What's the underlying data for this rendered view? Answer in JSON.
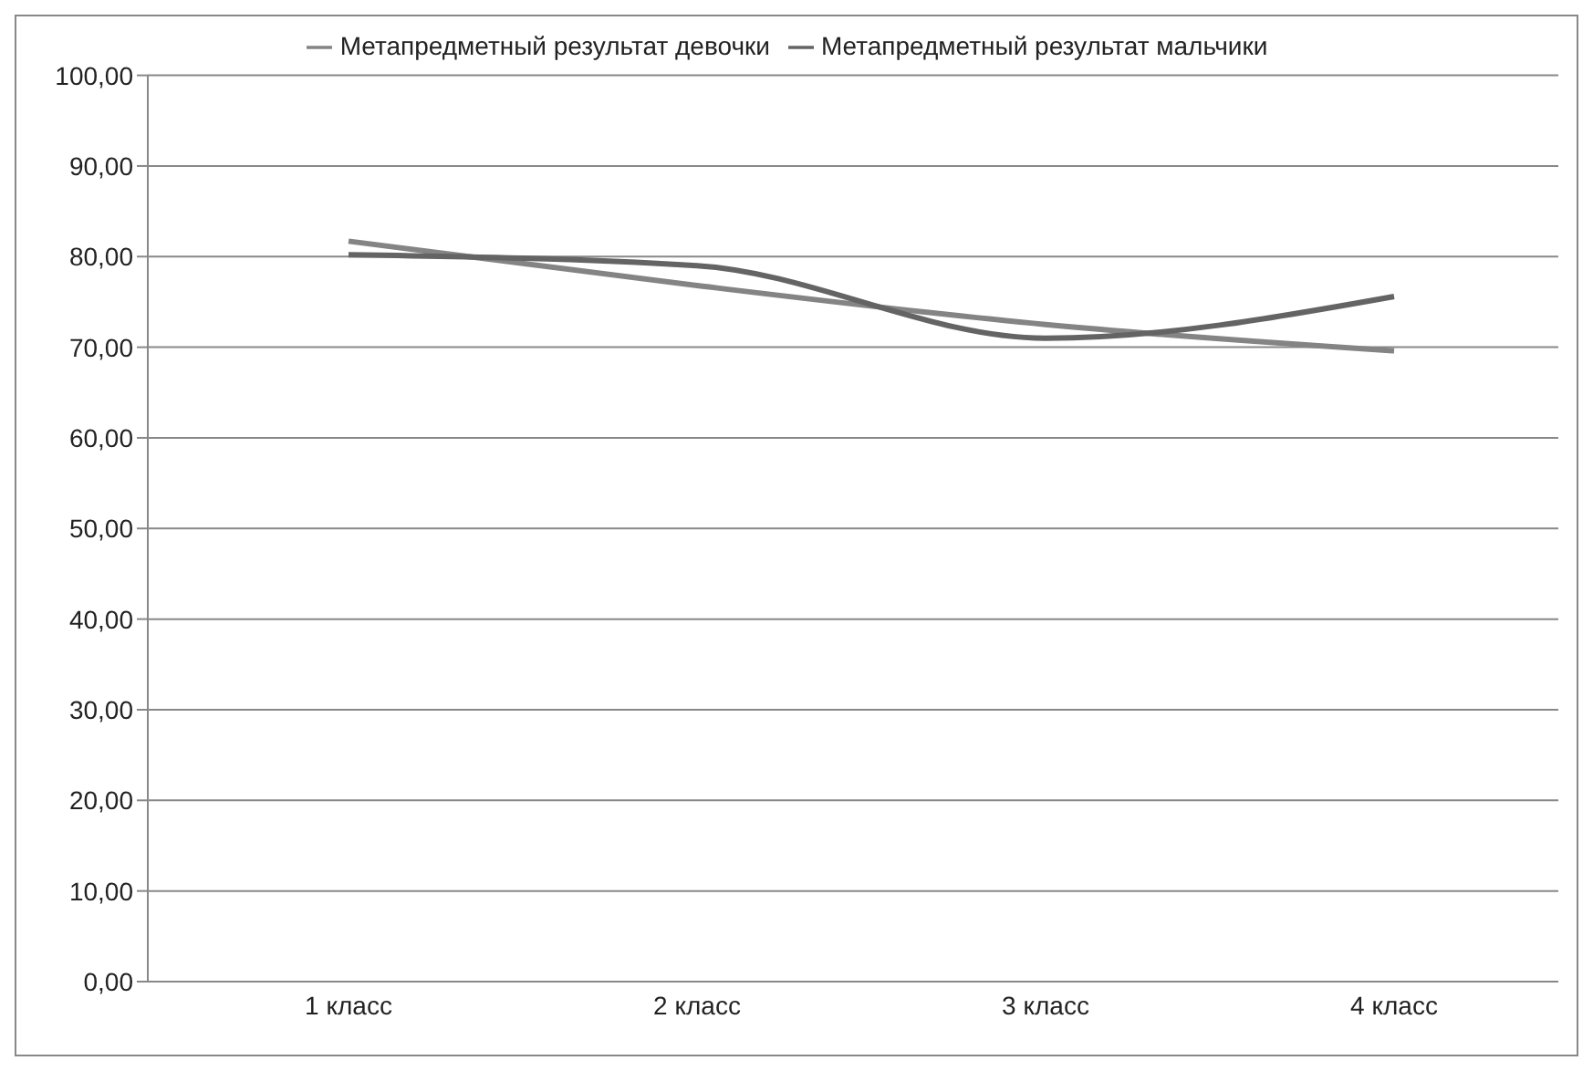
{
  "chart_data": {
    "type": "line",
    "categories": [
      "1 класс",
      "2 класс",
      "3 класс",
      "4 класс"
    ],
    "series": [
      {
        "name": "Метапредметный результат девочки",
        "color": "#848484",
        "values": [
          81.7,
          76.8,
          72.5,
          69.6
        ]
      },
      {
        "name": "Метапредметный результат мальчики",
        "color": "#646464",
        "values": [
          80.2,
          79.0,
          71.0,
          75.6
        ]
      }
    ],
    "ylim": [
      0,
      100
    ],
    "yticks": [
      {
        "value": 0,
        "label": "0,00"
      },
      {
        "value": 10,
        "label": "10,00"
      },
      {
        "value": 20,
        "label": "20,00"
      },
      {
        "value": 30,
        "label": "30,00"
      },
      {
        "value": 40,
        "label": "40,00"
      },
      {
        "value": 50,
        "label": "50,00"
      },
      {
        "value": 60,
        "label": "60,00"
      },
      {
        "value": 70,
        "label": "70,00"
      },
      {
        "value": 80,
        "label": "80,00"
      },
      {
        "value": 90,
        "label": "90,00"
      },
      {
        "value": 100,
        "label": "100,00"
      }
    ],
    "grid": "y",
    "legend": "top",
    "marker": "none",
    "line_style": "solid"
  }
}
